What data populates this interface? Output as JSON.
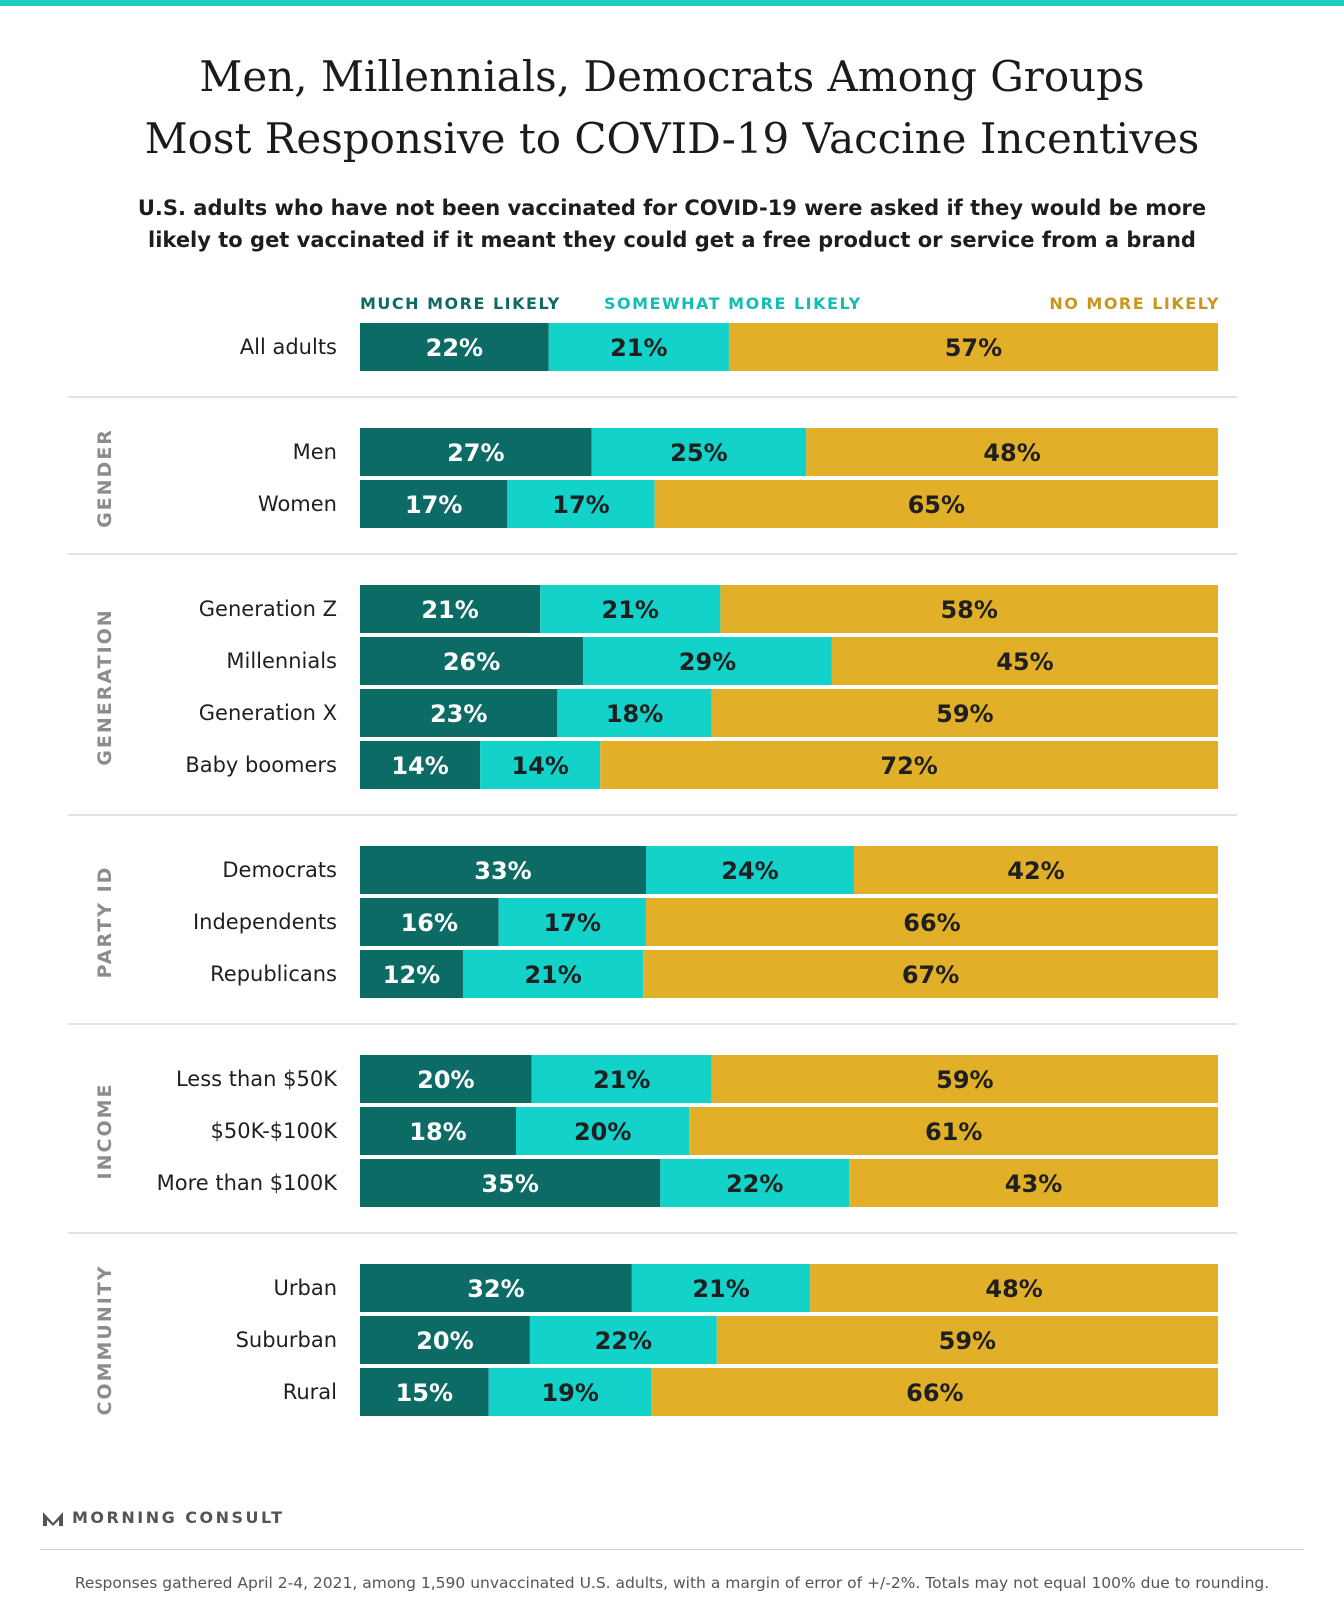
{
  "title_line1": "Men, Millennials, Democrats Among Groups",
  "title_line2": "Most Responsive to COVID-19 Vaccine Incentives",
  "subtitle_line1": "U.S. adults who have not been vaccinated for COVID-19 were asked if they would be more",
  "subtitle_line2": "likely to get vaccinated if it meant they could get a free product or service from a brand",
  "logo_text": "MORNING CONSULT",
  "footnote": "Responses gathered April 2-4, 2021, among 1,590 unvaccinated U.S. adults, with a margin of error of +/-2%. Totals may not equal 100% due to rounding.",
  "colors": {
    "much": "#0D6B66",
    "somewhat": "#12D2C9",
    "no_more": "#E1AF28",
    "label_dark": "#1f1f1f",
    "group_label": "#8c8c8c",
    "divider": "#d9d9d9",
    "top_bar": "#1ECBC0"
  },
  "chart_data": {
    "type": "bar",
    "orientation": "horizontal",
    "stacked": true,
    "unit": "%",
    "xlim": [
      0,
      100
    ],
    "legend_placement": "top",
    "series": [
      {
        "name": "MUCH MORE LIKELY"
      },
      {
        "name": "SOMEWHAT MORE LIKELY"
      },
      {
        "name": "NO MORE LIKELY"
      }
    ],
    "groups": [
      {
        "name": "",
        "rows": [
          {
            "label": "All adults",
            "values": [
              22,
              21,
              57
            ]
          }
        ]
      },
      {
        "name": "GENDER",
        "rows": [
          {
            "label": "Men",
            "values": [
              27,
              25,
              48
            ]
          },
          {
            "label": "Women",
            "values": [
              17,
              17,
              65
            ]
          }
        ]
      },
      {
        "name": "GENERATION",
        "rows": [
          {
            "label": "Generation Z",
            "values": [
              21,
              21,
              58
            ]
          },
          {
            "label": "Millennials",
            "values": [
              26,
              29,
              45
            ]
          },
          {
            "label": "Generation X",
            "values": [
              23,
              18,
              59
            ]
          },
          {
            "label": "Baby boomers",
            "values": [
              14,
              14,
              72
            ]
          }
        ]
      },
      {
        "name": "PARTY ID",
        "rows": [
          {
            "label": "Democrats",
            "values": [
              33,
              24,
              42
            ]
          },
          {
            "label": "Independents",
            "values": [
              16,
              17,
              66
            ]
          },
          {
            "label": "Republicans",
            "values": [
              12,
              21,
              67
            ]
          }
        ]
      },
      {
        "name": "INCOME",
        "rows": [
          {
            "label": "Less than $50K",
            "values": [
              20,
              21,
              59
            ]
          },
          {
            "label": "$50K-$100K",
            "values": [
              18,
              20,
              61
            ]
          },
          {
            "label": "More than $100K",
            "values": [
              35,
              22,
              43
            ]
          }
        ]
      },
      {
        "name": "COMMUNITY",
        "rows": [
          {
            "label": "Urban",
            "values": [
              32,
              21,
              48
            ]
          },
          {
            "label": "Suburban",
            "values": [
              20,
              22,
              59
            ]
          },
          {
            "label": "Rural",
            "values": [
              15,
              19,
              66
            ]
          }
        ]
      }
    ]
  }
}
